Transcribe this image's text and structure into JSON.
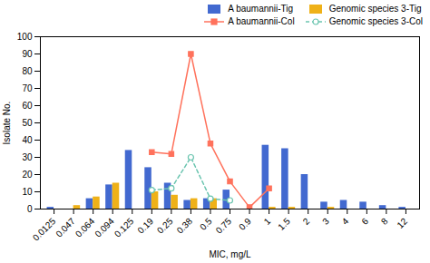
{
  "chart_data": {
    "type": "bar",
    "xlabel": "MIC, mg/L",
    "ylabel": "Isolate No.",
    "categories": [
      "0.0125",
      "0.047",
      "0.064",
      "0.094",
      "0.125",
      "0.19",
      "0.25",
      "0.38",
      "0.5",
      "0.75",
      "0.9",
      "1",
      "1.5",
      "2",
      "3",
      "4",
      "6",
      "8",
      "12"
    ],
    "series": [
      {
        "name": "A baumannii-Tig",
        "type": "bar",
        "values": [
          1,
          0,
          6,
          14,
          34,
          24,
          15,
          5,
          6,
          11,
          0,
          37,
          35,
          20,
          4,
          5,
          4,
          2,
          1
        ]
      },
      {
        "name": "Genomic species 3-Tig",
        "type": "bar",
        "values": [
          0,
          2,
          7,
          15,
          0,
          10,
          8,
          6,
          6,
          0,
          0,
          1,
          1,
          0,
          1,
          0,
          0,
          0,
          0
        ]
      },
      {
        "name": "A baumannii-Col",
        "type": "line",
        "marker": "square",
        "line_style": "solid",
        "values": [
          null,
          null,
          null,
          null,
          null,
          33,
          32,
          90,
          38,
          16,
          1,
          12,
          null,
          null,
          null,
          null,
          null,
          null,
          null
        ]
      },
      {
        "name": "Genomic species 3-Col",
        "type": "line",
        "marker": "circle",
        "line_style": "dashed",
        "values": [
          null,
          null,
          null,
          null,
          null,
          11,
          12,
          30,
          6,
          5,
          null,
          null,
          null,
          null,
          null,
          null,
          null,
          null,
          null
        ]
      }
    ],
    "ylim": [
      0,
      100
    ],
    "yticks": [
      0,
      10,
      20,
      30,
      40,
      50,
      60,
      70,
      80,
      90,
      100
    ],
    "legend": "upper right",
    "grid": false
  }
}
